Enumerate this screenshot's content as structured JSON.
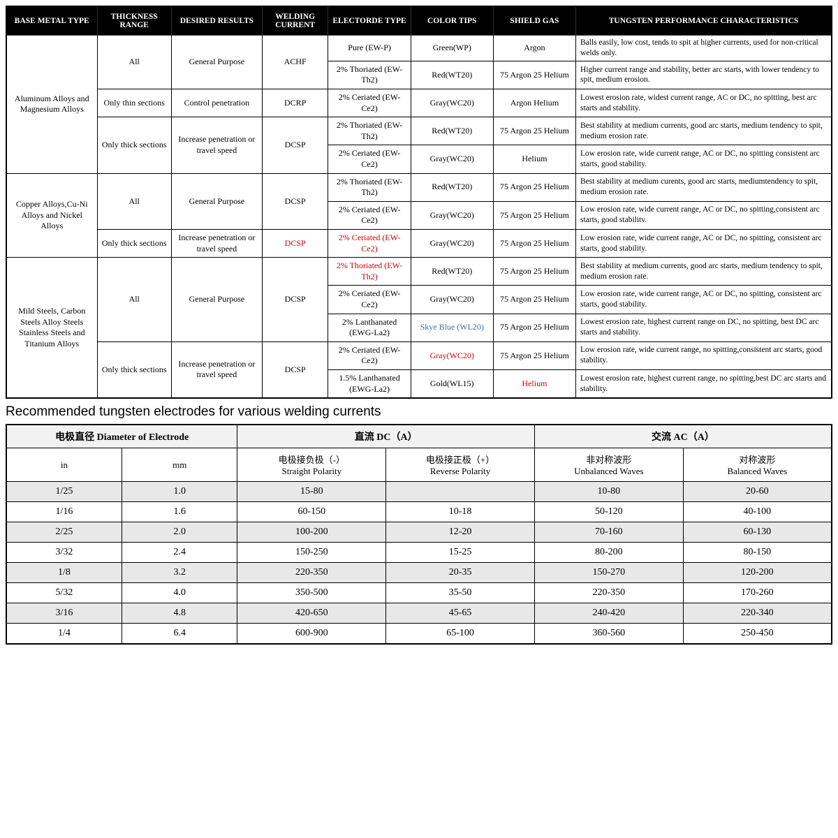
{
  "table1": {
    "headers": [
      "BASE METAL TYPE",
      "THICKNESS RANGE",
      "DESIRED RESULTS",
      "WELDING CURRENT",
      "ELECTORDE TYPE",
      "COLOR TIPS",
      "SHIELD GAS",
      "TUNGSTEN PERFORMANCE CHARACTERISTICS"
    ],
    "col_widths": [
      "11%",
      "9%",
      "11%",
      "8%",
      "10%",
      "10%",
      "10%",
      "31%"
    ],
    "groups": [
      {
        "metal": "Aluminum Alloys and Magnesium Alloys",
        "rows": [
          {
            "thick": "All",
            "thick_span": 2,
            "results": "General Purpose",
            "results_span": 2,
            "current": "ACHF",
            "current_span": 2,
            "electrode": "Pure (EW-P)",
            "color": "Green(WP)",
            "gas": "Argon",
            "perf": "Balls easily, low cost, tends to spit at higher currents, used for non-critical welds only."
          },
          {
            "electrode": "2% Thoriated (EW-Th2)",
            "color": "Red(WT20)",
            "gas": "75 Argon 25 Helium",
            "perf": "Higher current range and stability, better arc starts, with lower tendency to spit, medium erosion."
          },
          {
            "thick": "Only thin sections",
            "thick_span": 1,
            "results": "Control penetration",
            "results_span": 1,
            "current": "DCRP",
            "current_span": 1,
            "electrode": "2% Ceriated (EW-Ce2)",
            "color": "Gray(WC20)",
            "gas": "Argon Helium",
            "perf": "Lowest erosion rate, widest current range, AC or DC, no spitting, best arc starts and stability."
          },
          {
            "thick": "Only thick sections",
            "thick_span": 2,
            "results": "Increase penetration or travel speed",
            "results_span": 2,
            "current": "DCSP",
            "current_span": 2,
            "electrode": "2% Thoriated (EW-Th2)",
            "color": "Red(WT20)",
            "gas": "75 Argon 25 Helium",
            "perf": "Best stability at medium currents, good arc starts, medium tendency to spit, medium erosion rate."
          },
          {
            "electrode": "2% Ceriated (EW-Ce2)",
            "color": "Gray(WC20)",
            "gas": "Helium",
            "perf": "Low erosion rate, wide current range, AC or DC, no spitting consistent arc starts, good stability."
          }
        ]
      },
      {
        "metal": "Copper Alloys,Cu-Ni Alloys and Nickel Alloys",
        "rows": [
          {
            "thick": "All",
            "thick_span": 2,
            "results": "General Purpose",
            "results_span": 2,
            "current": "DCSP",
            "current_span": 2,
            "electrode": "2% Thoriated (EW-Th2)",
            "color": "Red(WT20)",
            "gas": "75 Argon 25 Helium",
            "perf": "Best stability at medium curents, good arc starts, mediumtendency to spit, medium erosion rate."
          },
          {
            "electrode": "2% Ceriated (EW-Ce2)",
            "color": "Gray(WC20)",
            "gas": "75 Argon 25 Helium",
            "perf": "Low erosion rate, wide current range, AC or DC, no spitting,consistent arc starts, good stabilitv."
          },
          {
            "thick": "Only thick sections",
            "thick_span": 1,
            "results": "Increase penetration or travel speed",
            "results_span": 1,
            "current": "DCSP",
            "current_span": 1,
            "current_red": true,
            "electrode": "2% Ceriated (EW-Ce2)",
            "electrode_red": true,
            "color": "Gray(WC20)",
            "gas": "75 Argon 25 Helium",
            "perf": "Low erosion rate, wide current range, AC or DC, no spitting, consistent arc starts, good stability."
          }
        ]
      },
      {
        "metal": "Mild Steels, Carbon Steels Alloy Steels Stainless Steels and Titanium Alloys",
        "rows": [
          {
            "thick": "All",
            "thick_span": 3,
            "results": "General Purpose",
            "results_span": 3,
            "current": "DCSP",
            "current_span": 3,
            "electrode": "2% Thoriated (EW-Th2)",
            "electrode_red": true,
            "color": "Red(WT20)",
            "gas": "75 Argon 25 Helium",
            "perf": "Best stability at medium currents, good arc starts, medium tendency to spit, medium erosion rate."
          },
          {
            "electrode": "2% Ceriated (EW-Ce2)",
            "color": "Gray(WC20)",
            "gas": "75 Argon 25 Helium",
            "perf": "Low erosion rate, wide current range, AC or DC, no spitting, consistent arc starts, good stability."
          },
          {
            "electrode": "2% Lanthanated (EWG-La2)",
            "color": "Skye Blue (WL20)",
            "color_blue": true,
            "gas": "75 Argon 25 Helium",
            "perf": "Lowest erosion rate, highest current range on DC, no spitting, best DC arc starts and stability."
          },
          {
            "thick": "Only thick sections",
            "thick_span": 2,
            "results": "Increase penetration or travel speed",
            "results_span": 2,
            "current": "DCSP",
            "current_span": 2,
            "electrode": "2% Ceriated (EW-Ce2)",
            "color": "Gray(WC20)",
            "color_red": true,
            "gas": "75 Argon 25 Helium",
            "perf": "Low erosion rate, wide current range, no spitting,consistent arc starts, good stability."
          },
          {
            "electrode": "1.5% Lanthanated (EWG-La2)",
            "color": "Gold(WL15)",
            "gas": "Helium",
            "gas_red": true,
            "perf": "Lowest erosion rate, highest current range, no spitting,best DC arc starts and stability."
          }
        ]
      }
    ]
  },
  "subheading": "Recommended tungsten electrodes for various welding currents",
  "table2": {
    "header_top": [
      {
        "label": "电极直径 Diameter of Electrode",
        "span": 2
      },
      {
        "label": "直流 DC（A）",
        "span": 2
      },
      {
        "label": "交流 AC（A）",
        "span": 2
      }
    ],
    "header_sub": [
      "in",
      "mm",
      "电极接负极（-）\nStraight Polarity",
      "电极接正极（+）\nReverse Polarity",
      "非对称波形\nUnbalanced Waves",
      "对称波形\nBalanced Waves"
    ],
    "rows": [
      [
        "1/25",
        "1.0",
        "15-80",
        "",
        "10-80",
        "20-60"
      ],
      [
        "1/16",
        "1.6",
        "60-150",
        "10-18",
        "50-120",
        "40-100"
      ],
      [
        "2/25",
        "2.0",
        "100-200",
        "12-20",
        "70-160",
        "60-130"
      ],
      [
        "3/32",
        "2.4",
        "150-250",
        "15-25",
        "80-200",
        "80-150"
      ],
      [
        "1/8",
        "3.2",
        "220-350",
        "20-35",
        "150-270",
        "120-200"
      ],
      [
        "5/32",
        "4.0",
        "350-500",
        "35-50",
        "220-350",
        "170-260"
      ],
      [
        "3/16",
        "4.8",
        "420-650",
        "45-65",
        "240-420",
        "220-340"
      ],
      [
        "1/4",
        "6.4",
        "600-900",
        "65-100",
        "360-560",
        "250-450"
      ]
    ],
    "col_widths": [
      "14%",
      "14%",
      "18%",
      "18%",
      "18%",
      "18%"
    ]
  },
  "colors": {
    "header_bg": "#000000",
    "header_fg": "#ffffff",
    "border": "#000000",
    "alt_row": "#e8e8e8",
    "red": "#cc0000",
    "blue": "#3a6ea5"
  }
}
